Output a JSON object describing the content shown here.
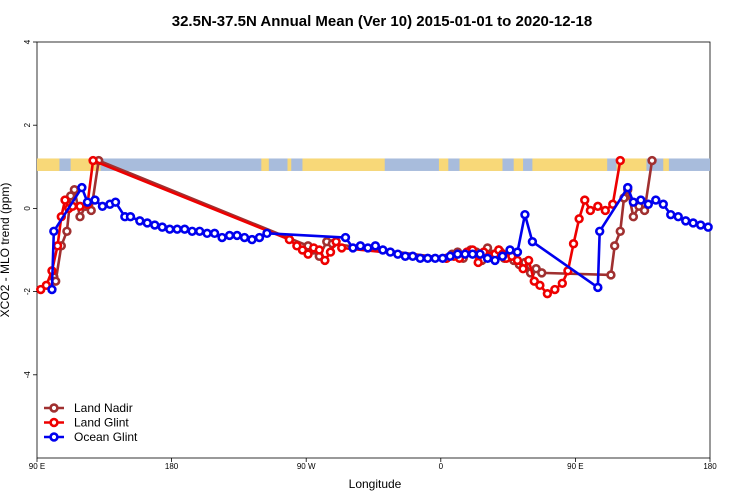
{
  "chart_data": {
    "type": "line",
    "title": "32.5N-37.5N Annual Mean (Ver 10)   2015-01-01 to 2020-12-18",
    "xlabel": "Longitude",
    "ylabel": "XCO2 - MLO trend (ppm)",
    "xlim": [
      90,
      450
    ],
    "ylim": [
      -6,
      4
    ],
    "x_ticks": [
      90,
      162,
      234,
      306,
      378,
      450
    ],
    "x_tick_labels": [
      "90 E",
      "180",
      "90 W",
      "0",
      "90 E",
      "180"
    ],
    "y_ticks": [
      -4,
      -2,
      0,
      2,
      4
    ],
    "y_tick_labels": [
      "-4",
      "-2",
      "0",
      "2",
      "4"
    ],
    "grid": false,
    "legend_position": "bottom-left",
    "land_ocean_band": {
      "y_range": [
        0.9,
        1.2
      ],
      "ocean_color": "#a8bcdc",
      "land_color": "#f8d878"
    },
    "series": [
      {
        "name": "Land Nadir",
        "color": "#a03030",
        "points": [
          [
            99,
            -1.65
          ],
          [
            100,
            -1.75
          ],
          [
            103,
            -0.9
          ],
          [
            106,
            -0.55
          ],
          [
            108,
            0.3
          ],
          [
            110,
            0.45
          ],
          [
            113,
            -0.2
          ],
          [
            116,
            0.05
          ],
          [
            119,
            -0.05
          ],
          [
            123,
            1.15
          ],
          [
            235,
            -0.9
          ],
          [
            238,
            -1.0
          ],
          [
            241,
            -1.15
          ],
          [
            245,
            -0.8
          ],
          [
            248,
            -0.85
          ],
          [
            309,
            -1.2
          ],
          [
            312,
            -1.1
          ],
          [
            315,
            -1.05
          ],
          [
            318,
            -1.2
          ],
          [
            322,
            -1.0
          ],
          [
            325,
            -1.05
          ],
          [
            328,
            -1.25
          ],
          [
            331,
            -0.95
          ],
          [
            334,
            -1.1
          ],
          [
            337,
            -1.0
          ],
          [
            338,
            -1.05
          ],
          [
            340,
            -1.2
          ],
          [
            342,
            -1.1
          ],
          [
            345,
            -1.25
          ],
          [
            348,
            -1.35
          ],
          [
            351,
            -1.3
          ],
          [
            354,
            -1.55
          ],
          [
            357,
            -1.45
          ],
          [
            360,
            -1.55
          ],
          [
            397,
            -1.6
          ],
          [
            399,
            -0.9
          ],
          [
            402,
            -0.55
          ],
          [
            404,
            0.25
          ],
          [
            406,
            0.45
          ],
          [
            409,
            -0.2
          ],
          [
            412,
            0.05
          ],
          [
            415,
            -0.05
          ],
          [
            419,
            1.15
          ]
        ]
      },
      {
        "name": "Land Glint",
        "color": "#ee0000",
        "points": [
          [
            92,
            -1.95
          ],
          [
            95,
            -1.85
          ],
          [
            98,
            -1.5
          ],
          [
            101,
            -0.9
          ],
          [
            103,
            -0.2
          ],
          [
            105,
            0.2
          ],
          [
            107,
            0.0
          ],
          [
            109,
            0.05
          ],
          [
            113,
            0.05
          ],
          [
            117,
            0.1
          ],
          [
            120,
            1.15
          ],
          [
            225,
            -0.75
          ],
          [
            229,
            -0.9
          ],
          [
            232,
            -1.0
          ],
          [
            235,
            -1.1
          ],
          [
            238,
            -0.95
          ],
          [
            241,
            -1.0
          ],
          [
            244,
            -1.25
          ],
          [
            247,
            -1.05
          ],
          [
            250,
            -0.8
          ],
          [
            253,
            -0.95
          ],
          [
            309,
            -1.2
          ],
          [
            313,
            -1.15
          ],
          [
            316,
            -1.2
          ],
          [
            320,
            -1.05
          ],
          [
            323,
            -1.0
          ],
          [
            326,
            -1.3
          ],
          [
            329,
            -1.05
          ],
          [
            332,
            -1.15
          ],
          [
            335,
            -1.1
          ],
          [
            337,
            -1.0
          ],
          [
            339,
            -1.1
          ],
          [
            341,
            -1.2
          ],
          [
            344,
            -1.15
          ],
          [
            347,
            -1.25
          ],
          [
            350,
            -1.45
          ],
          [
            353,
            -1.25
          ],
          [
            356,
            -1.75
          ],
          [
            359,
            -1.85
          ],
          [
            363,
            -2.05
          ],
          [
            367,
            -1.95
          ],
          [
            371,
            -1.8
          ],
          [
            374,
            -1.5
          ],
          [
            377,
            -0.85
          ],
          [
            380,
            -0.25
          ],
          [
            383,
            0.2
          ],
          [
            386,
            -0.05
          ],
          [
            390,
            0.05
          ],
          [
            394,
            -0.05
          ],
          [
            398,
            0.1
          ],
          [
            402,
            1.15
          ]
        ]
      },
      {
        "name": "Ocean Glint",
        "color": "#0000ee",
        "points": [
          [
            98,
            -1.95
          ],
          [
            99,
            -0.55
          ],
          [
            114,
            0.5
          ],
          [
            117,
            0.15
          ],
          [
            121,
            0.2
          ],
          [
            125,
            0.05
          ],
          [
            129,
            0.1
          ],
          [
            132,
            0.15
          ],
          [
            137,
            -0.2
          ],
          [
            140,
            -0.2
          ],
          [
            145,
            -0.3
          ],
          [
            149,
            -0.35
          ],
          [
            153,
            -0.4
          ],
          [
            157,
            -0.45
          ],
          [
            161,
            -0.5
          ],
          [
            165,
            -0.5
          ],
          [
            169,
            -0.5
          ],
          [
            173,
            -0.55
          ],
          [
            177,
            -0.55
          ],
          [
            181,
            -0.6
          ],
          [
            185,
            -0.6
          ],
          [
            189,
            -0.7
          ],
          [
            193,
            -0.65
          ],
          [
            197,
            -0.65
          ],
          [
            201,
            -0.7
          ],
          [
            205,
            -0.75
          ],
          [
            209,
            -0.7
          ],
          [
            213,
            -0.6
          ],
          [
            255,
            -0.7
          ],
          [
            259,
            -0.95
          ],
          [
            263,
            -0.9
          ],
          [
            267,
            -0.95
          ],
          [
            271,
            -0.9
          ],
          [
            275,
            -1.0
          ],
          [
            279,
            -1.05
          ],
          [
            283,
            -1.1
          ],
          [
            287,
            -1.15
          ],
          [
            291,
            -1.15
          ],
          [
            295,
            -1.2
          ],
          [
            299,
            -1.2
          ],
          [
            303,
            -1.2
          ],
          [
            307,
            -1.2
          ],
          [
            311,
            -1.15
          ],
          [
            315,
            -1.1
          ],
          [
            319,
            -1.1
          ],
          [
            323,
            -1.1
          ],
          [
            327,
            -1.1
          ],
          [
            331,
            -1.2
          ],
          [
            335,
            -1.25
          ],
          [
            339,
            -1.15
          ],
          [
            343,
            -1.0
          ],
          [
            347,
            -1.05
          ],
          [
            351,
            -0.15
          ],
          [
            355,
            -0.8
          ],
          [
            390,
            -1.9
          ],
          [
            391,
            -0.55
          ],
          [
            406,
            0.5
          ],
          [
            409,
            0.15
          ],
          [
            413,
            0.2
          ],
          [
            417,
            0.1
          ],
          [
            421,
            0.2
          ],
          [
            425,
            0.1
          ],
          [
            429,
            -0.15
          ],
          [
            433,
            -0.2
          ],
          [
            437,
            -0.3
          ],
          [
            441,
            -0.35
          ],
          [
            445,
            -0.4
          ],
          [
            449,
            -0.45
          ],
          [
            453,
            -0.5
          ]
        ]
      }
    ]
  }
}
